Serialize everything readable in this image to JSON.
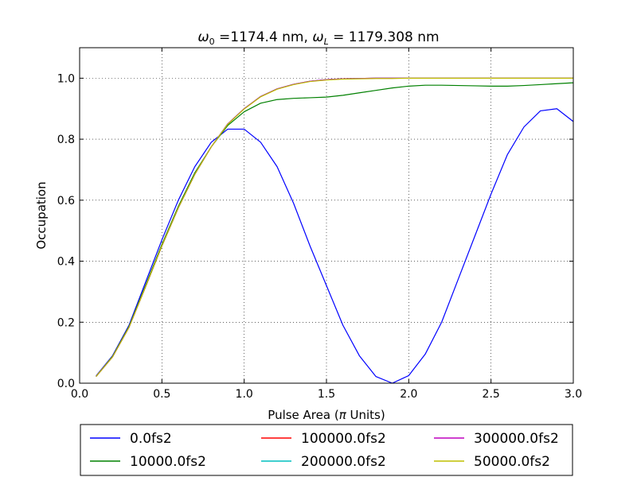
{
  "chart_data": {
    "type": "line",
    "title_parts": {
      "w0_symbol": "ω",
      "w0_sub": "0",
      "w0_value": " =1174.4 nm, ",
      "wl_symbol": "ω",
      "wl_sub": "L",
      "wl_value": " = 1179.308 nm"
    },
    "xlabel_parts": {
      "prefix": "Pulse Area (",
      "pi": "π",
      "suffix": " Units)"
    },
    "ylabel": "Occupation",
    "xlim": [
      0.0,
      3.0
    ],
    "ylim": [
      0.0,
      1.1
    ],
    "xticks": [
      "0.0",
      "0.5",
      "1.0",
      "1.5",
      "2.0",
      "2.5",
      "3.0"
    ],
    "yticks": [
      "0.0",
      "0.2",
      "0.4",
      "0.6",
      "0.8",
      "1.0"
    ],
    "grid": true,
    "legend_position": "below",
    "x": [
      0.1,
      0.2,
      0.3,
      0.4,
      0.5,
      0.6,
      0.7,
      0.8,
      0.9,
      1.0,
      1.1,
      1.2,
      1.3,
      1.4,
      1.5,
      1.6,
      1.7,
      1.8,
      1.9,
      2.0,
      2.1,
      2.2,
      2.3,
      2.4,
      2.5,
      2.6,
      2.7,
      2.8,
      2.9,
      3.0
    ],
    "series": [
      {
        "name": "0.0fs2",
        "color": "#0000ff",
        "values": [
          0.024,
          0.09,
          0.19,
          0.33,
          0.47,
          0.6,
          0.71,
          0.79,
          0.833,
          0.833,
          0.79,
          0.71,
          0.59,
          0.45,
          0.32,
          0.19,
          0.09,
          0.022,
          0.0,
          0.025,
          0.095,
          0.2,
          0.34,
          0.48,
          0.62,
          0.75,
          0.84,
          0.893,
          0.9,
          0.858
        ]
      },
      {
        "name": "10000.0fs2",
        "color": "#008000",
        "values": [
          0.022,
          0.088,
          0.186,
          0.32,
          0.455,
          0.58,
          0.69,
          0.775,
          0.845,
          0.89,
          0.918,
          0.93,
          0.934,
          0.936,
          0.938,
          0.944,
          0.952,
          0.96,
          0.968,
          0.974,
          0.977,
          0.977,
          0.976,
          0.975,
          0.974,
          0.974,
          0.976,
          0.979,
          0.982,
          0.985
        ]
      },
      {
        "name": "100000.0fs2",
        "color": "#ff0000",
        "values": [
          0.022,
          0.086,
          0.183,
          0.315,
          0.45,
          0.575,
          0.685,
          0.775,
          0.85,
          0.9,
          0.94,
          0.965,
          0.98,
          0.99,
          0.995,
          0.998,
          0.999,
          1.0,
          1.0,
          1.0,
          1.0,
          1.0,
          1.0,
          1.0,
          1.0,
          1.0,
          1.0,
          1.0,
          1.0,
          1.0
        ]
      },
      {
        "name": "200000.0fs2",
        "color": "#00bfbf",
        "values": [
          0.022,
          0.086,
          0.183,
          0.315,
          0.45,
          0.575,
          0.685,
          0.775,
          0.85,
          0.9,
          0.94,
          0.965,
          0.98,
          0.99,
          0.995,
          0.998,
          0.999,
          1.0,
          1.0,
          1.0,
          1.0,
          1.0,
          1.0,
          1.0,
          1.0,
          1.0,
          1.0,
          1.0,
          1.0,
          1.0
        ]
      },
      {
        "name": "300000.0fs2",
        "color": "#bf00bf",
        "values": [
          0.022,
          0.086,
          0.183,
          0.315,
          0.45,
          0.575,
          0.685,
          0.775,
          0.85,
          0.9,
          0.94,
          0.965,
          0.98,
          0.99,
          0.995,
          0.998,
          0.999,
          1.0,
          1.0,
          1.0,
          1.0,
          1.0,
          1.0,
          1.0,
          1.0,
          1.0,
          1.0,
          1.0,
          1.0,
          1.0
        ]
      },
      {
        "name": "50000.0fs2",
        "color": "#bfbf00",
        "values": [
          0.022,
          0.086,
          0.183,
          0.315,
          0.45,
          0.575,
          0.685,
          0.775,
          0.849,
          0.899,
          0.939,
          0.964,
          0.979,
          0.989,
          0.994,
          0.997,
          0.998,
          0.999,
          0.999,
          1.0,
          1.0,
          1.0,
          1.0,
          1.0,
          1.0,
          1.0,
          1.0,
          1.0,
          1.0,
          1.0
        ]
      }
    ]
  }
}
